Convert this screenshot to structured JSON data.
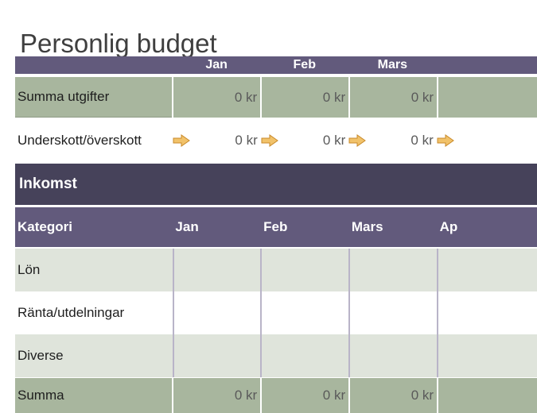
{
  "title": "Personlig budget",
  "expenses_summary": {
    "header_months": [
      "Jan",
      "Feb",
      "Mars"
    ],
    "total_label": "Summa utgifter",
    "total_values": [
      "0 kr",
      "0 kr",
      "0 kr"
    ],
    "balance_label": "Underskott/överskott",
    "balance_values": [
      "0 kr",
      "0 kr",
      "0 kr"
    ]
  },
  "income": {
    "section_title": "Inkomst",
    "header": {
      "category": "Kategori",
      "months": [
        "Jan",
        "Feb",
        "Mars",
        "Ap"
      ]
    },
    "rows": [
      {
        "category": "Lön"
      },
      {
        "category": "Ränta/utdelningar"
      },
      {
        "category": "Diverse"
      }
    ],
    "total_label": "Summa",
    "total_values": [
      "0 kr",
      "0 kr",
      "0 kr"
    ]
  },
  "colors": {
    "header": "#625a7c",
    "band": "#46425a",
    "total_row": "#a8b69e",
    "shaded_row": "#dfe4db",
    "arrow": "#e8b04a"
  }
}
